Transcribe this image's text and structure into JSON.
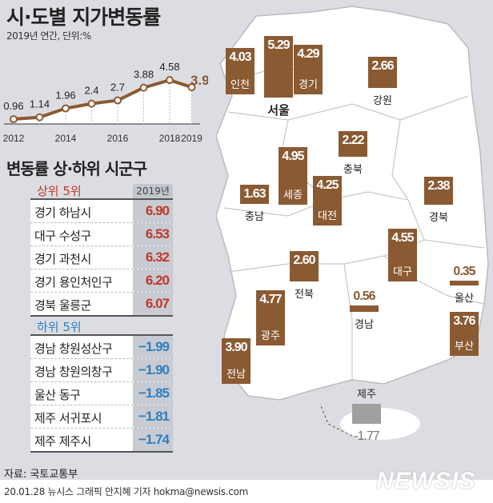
{
  "header": {
    "title": "시·도별 지가변동률",
    "subtitle": "2019년 연간, 단위:%"
  },
  "colors": {
    "bar": "#8a5a32",
    "line": "#8a5a32",
    "top_red": "#c0392b",
    "bottom_blue": "#2f7fc1",
    "jeju_bar": "#a0a0a0"
  },
  "chart_data": [
    {
      "type": "line",
      "title": "시·도별 지가변동률 (전국)",
      "x": [
        2012,
        2013,
        2014,
        2015,
        2016,
        2017,
        2018,
        2019
      ],
      "values": [
        0.96,
        1.14,
        1.96,
        2.4,
        2.7,
        3.88,
        4.58,
        3.92
      ],
      "labels": [
        "0.96",
        "1.14",
        "1.96",
        "2.4",
        "2.7",
        "3.88",
        "4.58",
        "3.92"
      ],
      "xticks": [
        "2012",
        "2014",
        "2016",
        "2018",
        "2019"
      ],
      "ylim": [
        0,
        5
      ]
    },
    {
      "type": "bar",
      "title": "2019 시·도별 지가변동률 (map)",
      "categories": [
        "인천",
        "서울",
        "경기",
        "강원",
        "충북",
        "세종",
        "대전",
        "충남",
        "경북",
        "대구",
        "전북",
        "광주",
        "경남",
        "울산",
        "부산",
        "전남",
        "제주"
      ],
      "values": [
        4.03,
        5.29,
        4.29,
        2.66,
        2.22,
        4.95,
        4.25,
        1.63,
        2.38,
        4.55,
        2.6,
        4.77,
        0.56,
        0.35,
        3.76,
        3.9,
        -1.77
      ],
      "labels": [
        "4.03",
        "5.29",
        "4.29",
        "2.66",
        "2.22",
        "4.95",
        "4.25",
        "1.63",
        "2.38",
        "4.55",
        "2.60",
        "4.77",
        "0.56",
        "0.35",
        "3.76",
        "3.90",
        "-1.77"
      ]
    }
  ],
  "ranking": {
    "title": "변동률 상·하위 시군구",
    "year": "2019년",
    "top": {
      "label": "상위 5위",
      "rows": [
        {
          "name": "경기 하남시",
          "value": "6.90"
        },
        {
          "name": "대구 수성구",
          "value": "6.53"
        },
        {
          "name": "경기 과천시",
          "value": "6.32"
        },
        {
          "name": "경기 용인처인구",
          "value": "6.20"
        },
        {
          "name": "경북 울릉군",
          "value": "6.07"
        }
      ]
    },
    "bottom": {
      "label": "하위 5위",
      "rows": [
        {
          "name": "경남 창원성산구",
          "value": "−1.99"
        },
        {
          "name": "경남 창원의창구",
          "value": "−1.90"
        },
        {
          "name": "울산 동구",
          "value": "−1.85"
        },
        {
          "name": "제주 서귀포시",
          "value": "−1.81"
        },
        {
          "name": "제주 제주시",
          "value": "−1.74"
        }
      ]
    }
  },
  "footer": {
    "source": "자료: 국토교통부",
    "credit": "20.01.28 뉴시스 그래픽 안지혜 기자 hokma@newsis.com",
    "logo": "NEWSIS"
  }
}
